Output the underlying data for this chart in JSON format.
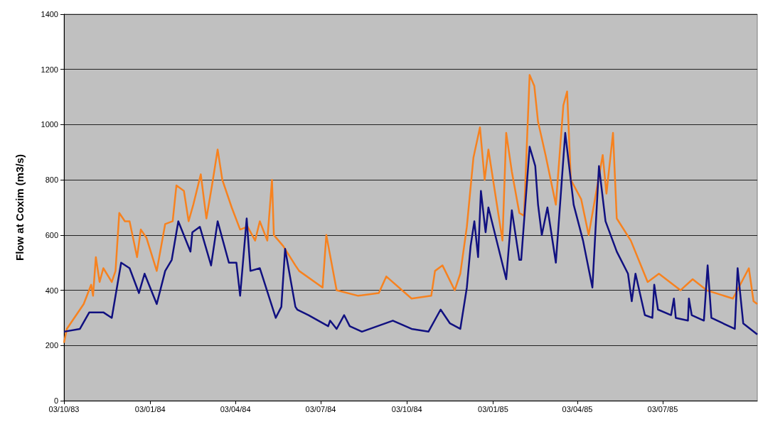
{
  "chart_data": {
    "type": "line",
    "ylabel": "Flow at Coxim (m3/s)",
    "xlim": [
      "1983-10-03",
      "1985-10-12"
    ],
    "ylim": [
      0,
      1400
    ],
    "yticks": [
      0,
      200,
      400,
      600,
      800,
      1000,
      1200,
      1400
    ],
    "xticks": [
      {
        "value": "1983-10-03",
        "label": "03/10/83"
      },
      {
        "value": "1984-01-03",
        "label": "03/01/84"
      },
      {
        "value": "1984-04-03",
        "label": "03/04/84"
      },
      {
        "value": "1984-07-03",
        "label": "03/07/84"
      },
      {
        "value": "1984-10-03",
        "label": "03/10/84"
      },
      {
        "value": "1985-01-03",
        "label": "03/01/85"
      },
      {
        "value": "1985-04-03",
        "label": "03/04/85"
      },
      {
        "value": "1985-07-03",
        "label": "03/07/85"
      }
    ],
    "grid": "y",
    "marker": "none",
    "line_style": "solid",
    "series": [
      {
        "color": "#f7821f",
        "x": [
          "1983-10-03",
          "1983-10-06",
          "1983-10-24",
          "1983-11-01",
          "1983-11-03",
          "1983-11-06",
          "1983-11-10",
          "1983-11-14",
          "1983-11-23",
          "1983-11-27",
          "1983-12-01",
          "1983-12-07",
          "1983-12-12",
          "1983-12-20",
          "1983-12-24",
          "1983-12-30",
          "1984-01-10",
          "1984-01-19",
          "1984-01-27",
          "1984-01-31",
          "1984-02-08",
          "1984-02-13",
          "1984-02-18",
          "1984-02-26",
          "1984-03-03",
          "1984-03-09",
          "1984-03-15",
          "1984-03-20",
          "1984-03-30",
          "1984-04-08",
          "1984-04-16",
          "1984-04-24",
          "1984-04-29",
          "1984-05-07",
          "1984-05-12",
          "1984-05-14",
          "1984-05-24",
          "1984-06-06",
          "1984-06-10",
          "1984-07-05",
          "1984-07-09",
          "1984-07-20",
          "1984-08-12",
          "1984-09-03",
          "1984-09-11",
          "1984-10-08",
          "1984-10-29",
          "1984-11-02",
          "1984-11-10",
          "1984-11-23",
          "1984-11-29",
          "1984-12-06",
          "1984-12-13",
          "1984-12-20",
          "1984-12-25",
          "1984-12-29",
          "1985-01-13",
          "1985-01-17",
          "1985-01-23",
          "1985-01-31",
          "1985-02-05",
          "1985-02-11",
          "1985-02-16",
          "1985-02-20",
          "1985-02-28",
          "1985-03-11",
          "1985-03-19",
          "1985-03-23",
          "1985-03-27",
          "1985-04-07",
          "1985-04-15",
          "1985-04-30",
          "1985-05-04",
          "1985-05-11",
          "1985-05-15",
          "1985-05-30",
          "1985-06-17",
          "1985-06-29",
          "1985-07-22",
          "1985-08-04",
          "1985-08-19",
          "1985-09-16",
          "1985-10-03",
          "1985-10-08",
          "1985-10-12"
        ],
        "values": [
          210,
          260,
          350,
          420,
          380,
          520,
          430,
          480,
          430,
          470,
          680,
          650,
          650,
          520,
          620,
          590,
          470,
          640,
          650,
          780,
          760,
          650,
          710,
          820,
          660,
          780,
          910,
          800,
          700,
          620,
          630,
          580,
          650,
          580,
          800,
          600,
          560,
          490,
          470,
          410,
          600,
          400,
          380,
          390,
          450,
          370,
          380,
          470,
          490,
          400,
          460,
          630,
          880,
          990,
          800,
          910,
          580,
          970,
          830,
          680,
          670,
          1180,
          1140,
          1010,
          890,
          710,
          1070,
          1120,
          800,
          730,
          600,
          890,
          750,
          970,
          660,
          580,
          430,
          460,
          400,
          440,
          400,
          370,
          480,
          360,
          350
        ]
      },
      {
        "color": "#101080",
        "x": [
          "1983-10-03",
          "1983-10-20",
          "1983-10-30",
          "1983-11-14",
          "1983-11-23",
          "1983-12-03",
          "1983-12-12",
          "1983-12-22",
          "1983-12-28",
          "1984-01-10",
          "1984-01-19",
          "1984-01-26",
          "1984-02-02",
          "1984-02-15",
          "1984-02-17",
          "1984-02-25",
          "1984-03-08",
          "1984-03-15",
          "1984-03-27",
          "1984-04-04",
          "1984-04-08",
          "1984-04-15",
          "1984-04-19",
          "1984-04-29",
          "1984-05-16",
          "1984-05-22",
          "1984-05-26",
          "1984-06-06",
          "1984-06-08",
          "1984-06-20",
          "1984-07-11",
          "1984-07-13",
          "1984-07-20",
          "1984-07-28",
          "1984-08-03",
          "1984-08-16",
          "1984-09-18",
          "1984-10-08",
          "1984-10-26",
          "1984-11-08",
          "1984-11-18",
          "1984-11-29",
          "1984-12-06",
          "1984-12-10",
          "1984-12-14",
          "1984-12-18",
          "1984-12-21",
          "1984-12-26",
          "1984-12-29",
          "1985-01-17",
          "1985-01-23",
          "1985-01-31",
          "1985-02-02",
          "1985-02-11",
          "1985-02-17",
          "1985-02-20",
          "1985-02-24",
          "1985-03-02",
          "1985-03-11",
          "1985-03-21",
          "1985-03-30",
          "1985-04-09",
          "1985-04-19",
          "1985-04-26",
          "1985-05-03",
          "1985-05-15",
          "1985-05-27",
          "1985-05-31",
          "1985-06-04",
          "1985-06-14",
          "1985-06-22",
          "1985-06-24",
          "1985-06-28",
          "1985-07-12",
          "1985-07-15",
          "1985-07-17",
          "1985-07-30",
          "1985-07-31",
          "1985-08-03",
          "1985-08-16",
          "1985-08-20",
          "1985-08-24",
          "1985-09-18",
          "1985-09-21",
          "1985-09-27",
          "1985-10-12"
        ],
        "values": [
          250,
          260,
          320,
          320,
          300,
          500,
          480,
          390,
          460,
          350,
          470,
          510,
          650,
          540,
          610,
          630,
          490,
          650,
          500,
          500,
          380,
          660,
          470,
          480,
          300,
          340,
          550,
          340,
          330,
          310,
          270,
          290,
          260,
          310,
          270,
          250,
          290,
          260,
          250,
          330,
          280,
          260,
          410,
          560,
          650,
          520,
          760,
          610,
          700,
          440,
          690,
          510,
          510,
          920,
          850,
          710,
          600,
          700,
          500,
          970,
          710,
          580,
          410,
          850,
          650,
          540,
          460,
          360,
          460,
          310,
          300,
          420,
          330,
          310,
          370,
          300,
          290,
          370,
          310,
          290,
          490,
          300,
          260,
          480,
          280,
          240
        ]
      }
    ]
  }
}
